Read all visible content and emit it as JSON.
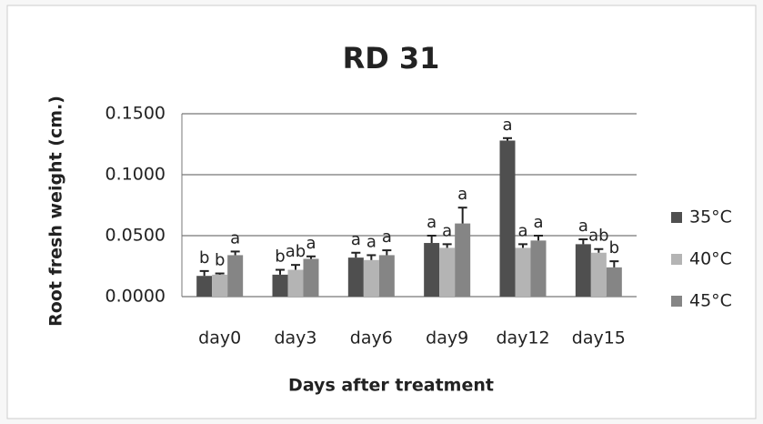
{
  "chart_data": {
    "type": "bar",
    "title": "RD 31",
    "x_label": "Days after treatment",
    "y_label": "Root fresh weight (cm.)",
    "categories": [
      "day0",
      "day3",
      "day6",
      "day9",
      "day12",
      "day15"
    ],
    "series": [
      {
        "name": "35°C",
        "color": "#4f4f4f",
        "values": [
          0.017,
          0.018,
          0.032,
          0.044,
          0.128,
          0.043
        ],
        "errors": [
          0.004,
          0.004,
          0.004,
          0.006,
          0.002,
          0.004
        ],
        "letters": [
          "b",
          "b",
          "a",
          "a",
          "a",
          "a"
        ]
      },
      {
        "name": "40°C",
        "color": "#b4b4b4",
        "values": [
          0.018,
          0.022,
          0.03,
          0.04,
          0.04,
          0.036
        ],
        "errors": [
          0.001,
          0.004,
          0.004,
          0.003,
          0.003,
          0.003
        ],
        "letters": [
          "b",
          "ab",
          "a",
          "a",
          "a",
          "ab"
        ]
      },
      {
        "name": "45°C",
        "color": "#858585",
        "values": [
          0.034,
          0.031,
          0.034,
          0.06,
          0.046,
          0.024
        ],
        "errors": [
          0.003,
          0.002,
          0.004,
          0.013,
          0.004,
          0.005
        ],
        "letters": [
          "a",
          "a",
          "a",
          "a",
          "a",
          "b"
        ]
      }
    ],
    "ylim": [
      0,
      0.15
    ],
    "yticks": [
      {
        "value": 0,
        "label": "0.0000"
      },
      {
        "value": 0.05,
        "label": "0.0500"
      },
      {
        "value": 0.1,
        "label": "0.1000"
      },
      {
        "value": 0.15,
        "label": "0.1500"
      }
    ],
    "grid": true,
    "legend": "right"
  }
}
